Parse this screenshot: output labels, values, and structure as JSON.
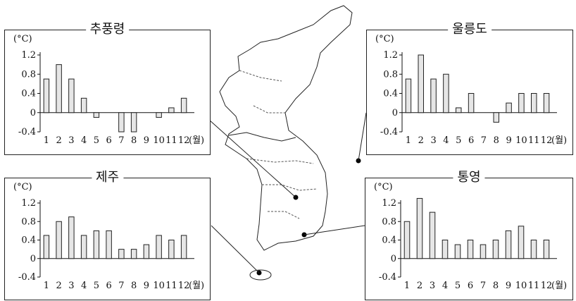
{
  "chart_data": [
    {
      "type": "bar",
      "title": "추풍령",
      "y_unit": "(°C)",
      "x_unit": "(월)",
      "categories": [
        "1",
        "2",
        "3",
        "4",
        "5",
        "6",
        "7",
        "8",
        "9",
        "10",
        "11",
        "12"
      ],
      "values": [
        0.7,
        1.0,
        0.7,
        0.3,
        -0.1,
        0,
        -0.4,
        -0.4,
        0,
        -0.1,
        0.1,
        0.3
      ],
      "yticks": [
        "1.2",
        "0.8",
        "0.4",
        "0",
        "-0.4"
      ],
      "ylim": [
        -0.4,
        1.2
      ],
      "bar_color": "#e6e6e6"
    },
    {
      "type": "bar",
      "title": "울릉도",
      "y_unit": "(°C)",
      "x_unit": "(월)",
      "categories": [
        "1",
        "2",
        "3",
        "4",
        "5",
        "6",
        "7",
        "8",
        "9",
        "10",
        "11",
        "12"
      ],
      "values": [
        0.7,
        1.2,
        0.7,
        0.8,
        0.1,
        0.4,
        0,
        -0.2,
        0.2,
        0.4,
        0.4,
        0.4
      ],
      "yticks": [
        "1.2",
        "0.8",
        "0.4",
        "0",
        "-0.4"
      ],
      "ylim": [
        -0.4,
        1.2
      ],
      "bar_color": "#e6e6e6"
    },
    {
      "type": "bar",
      "title": "제주",
      "y_unit": "(°C)",
      "x_unit": "(월)",
      "categories": [
        "1",
        "2",
        "3",
        "4",
        "5",
        "6",
        "7",
        "8",
        "9",
        "10",
        "11",
        "12"
      ],
      "values": [
        0.5,
        0.8,
        0.9,
        0.5,
        0.6,
        0.6,
        0.2,
        0.2,
        0.3,
        0.5,
        0.4,
        0.5
      ],
      "yticks": [
        "1.2",
        "0.8",
        "0.4",
        "0",
        "-0.4"
      ],
      "ylim": [
        -0.4,
        1.2
      ],
      "bar_color": "#e6e6e6"
    },
    {
      "type": "bar",
      "title": "통영",
      "y_unit": "(°C)",
      "x_unit": "(월)",
      "categories": [
        "1",
        "2",
        "3",
        "4",
        "5",
        "6",
        "7",
        "8",
        "9",
        "10",
        "11",
        "12"
      ],
      "values": [
        0.8,
        1.3,
        1.0,
        0.4,
        0.3,
        0.4,
        0.3,
        0.4,
        0.6,
        0.7,
        0.4,
        0.4
      ],
      "yticks": [
        "1.2",
        "0.8",
        "0.4",
        "0",
        "-0.4"
      ],
      "ylim": [
        -0.4,
        1.2
      ],
      "bar_color": "#e6e6e6"
    }
  ]
}
